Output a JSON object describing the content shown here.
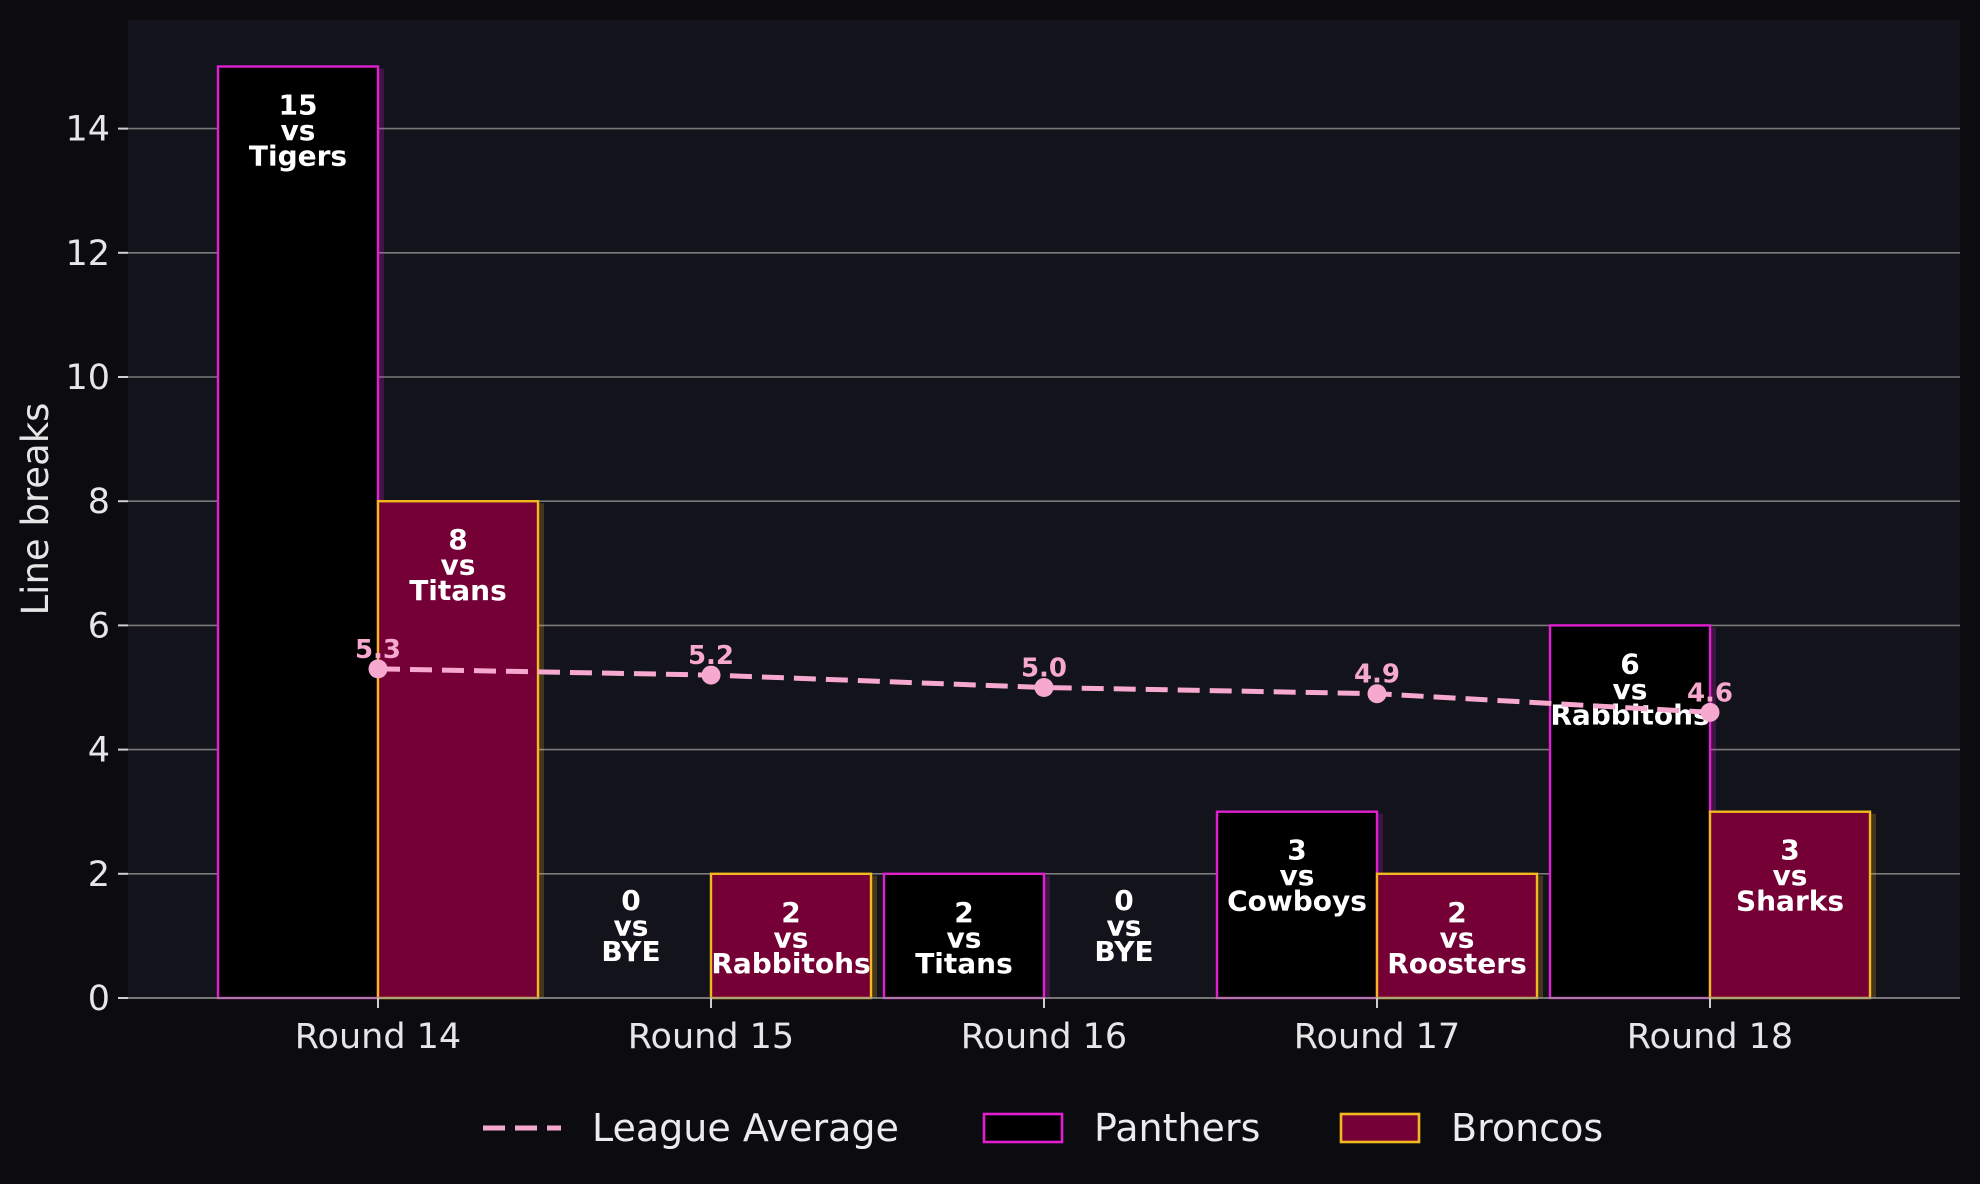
{
  "chart_data": {
    "type": "bar",
    "title": "",
    "xlabel": "",
    "ylabel": "Line breaks",
    "ylim": [
      0,
      15.75
    ],
    "yticks": [
      0,
      2,
      4,
      6,
      8,
      10,
      12,
      14
    ],
    "grid": true,
    "legend_position": "bottom-center",
    "categories": [
      "Round 14",
      "Round 15",
      "Round 16",
      "Round 17",
      "Round 18"
    ],
    "series": [
      {
        "name": "Panthers",
        "type": "bar",
        "values": [
          15,
          0,
          2,
          3,
          6
        ],
        "opponents": [
          "Tigers",
          "BYE",
          "Titans",
          "Cowboys",
          "Rabbitohs"
        ],
        "fill": "#000000",
        "edge": "#e01fd0"
      },
      {
        "name": "Broncos",
        "type": "bar",
        "values": [
          8,
          2,
          0,
          2,
          3
        ],
        "opponents": [
          "Titans",
          "Rabbitohs",
          "BYE",
          "Roosters",
          "Sharks"
        ],
        "fill": "#740035",
        "edge": "#f2b81e"
      },
      {
        "name": "League Average",
        "type": "line",
        "values": [
          5.3,
          5.2,
          5.0,
          4.9,
          4.6
        ],
        "labels": [
          "5.3",
          "5.2",
          "5.0",
          "4.9",
          "4.6"
        ],
        "color": "#f7a8cf",
        "style": "dashed"
      }
    ],
    "vs_text": "vs",
    "colors": {
      "plot_background": "#13131b",
      "page_background": "#0c0b10",
      "grid": "#7a7a7a"
    }
  }
}
